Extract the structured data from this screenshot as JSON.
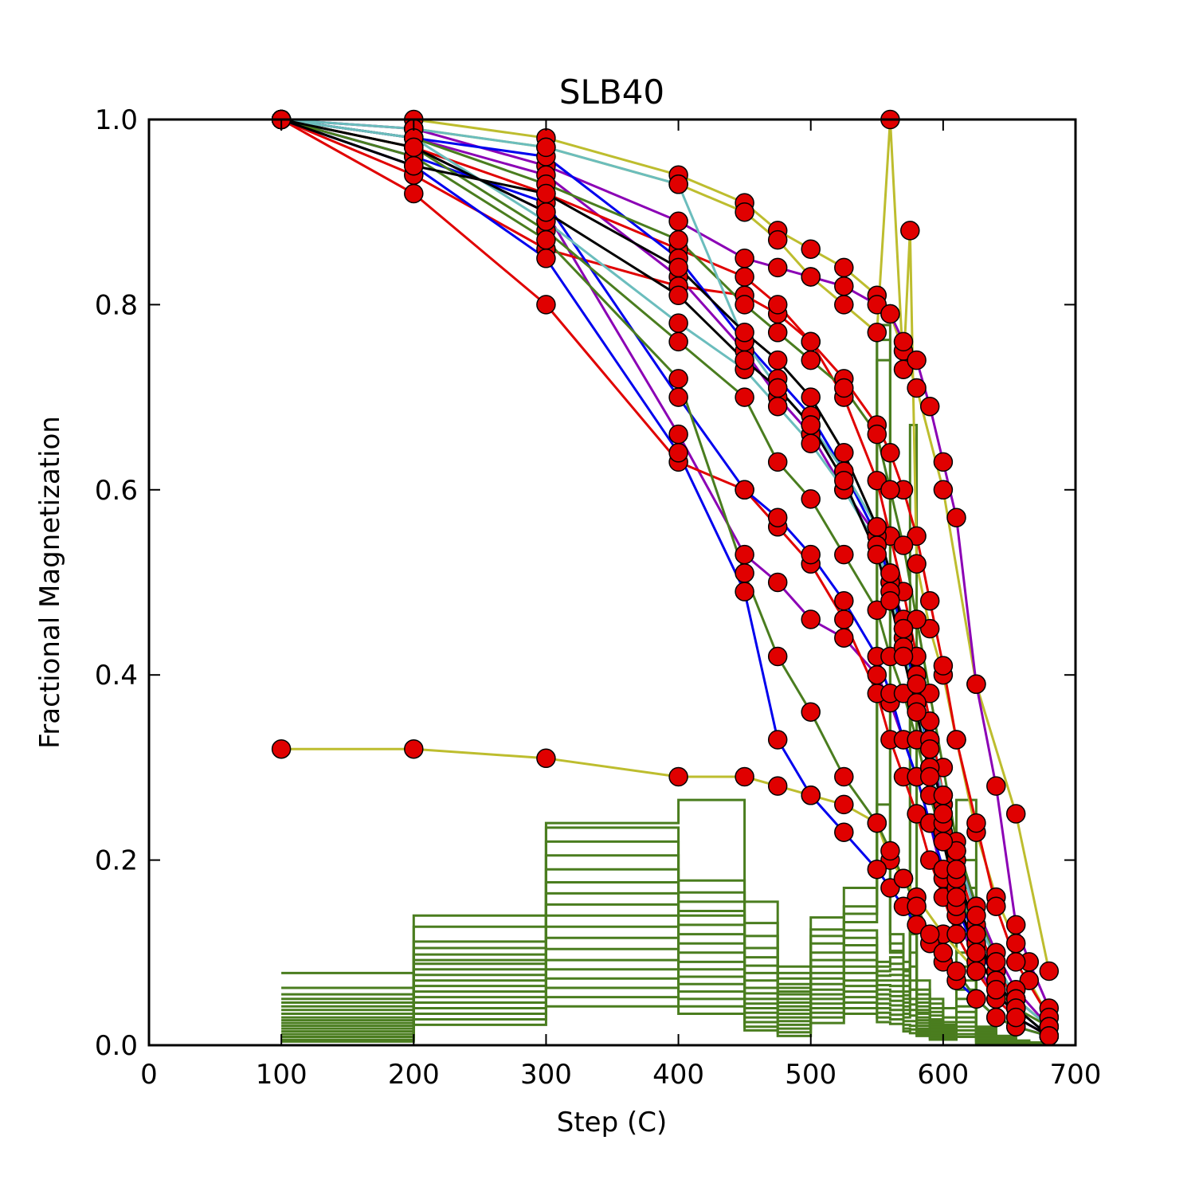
{
  "chart_data": {
    "type": "line",
    "title": "SLB40",
    "xlabel": "Step (C)",
    "ylabel": "Fractional Magnetization",
    "xlim": [
      0,
      700
    ],
    "ylim": [
      0.0,
      1.0
    ],
    "xticks": [
      "0",
      "100",
      "200",
      "300",
      "400",
      "500",
      "600",
      "700"
    ],
    "yticks": [
      "0.0",
      "0.2",
      "0.4",
      "0.6",
      "0.8",
      "1.0"
    ],
    "marker_color": "#e00000",
    "steps": [
      100,
      200,
      300,
      400,
      450,
      475,
      500,
      525,
      550,
      560,
      570,
      575,
      580,
      590,
      600,
      610,
      625,
      640,
      655,
      665,
      675,
      680
    ],
    "series": [
      {
        "color": "#bdbd2e",
        "x": [
          100,
          200,
          300,
          400,
          450,
          475,
          500,
          525,
          550,
          560,
          570,
          580,
          600,
          625,
          655,
          680
        ],
        "y": [
          1.0,
          1.0,
          0.98,
          0.94,
          0.91,
          0.88,
          0.86,
          0.84,
          0.81,
          0.79,
          0.75,
          0.71,
          0.6,
          0.39,
          0.25,
          0.08
        ]
      },
      {
        "color": "#bdbd2e",
        "x": [
          100,
          200,
          300,
          400,
          450,
          475,
          500,
          525,
          550,
          560,
          570,
          580,
          600,
          625,
          655,
          680
        ],
        "y": [
          0.32,
          0.32,
          0.31,
          0.29,
          0.29,
          0.28,
          0.27,
          0.26,
          0.24,
          0.2,
          0.18,
          0.16,
          0.12,
          0.08,
          0.04,
          0.01
        ]
      },
      {
        "color": "#bdbd2e",
        "x": [
          100,
          200,
          300,
          400,
          450,
          475,
          500,
          525,
          550,
          560,
          570,
          575,
          580,
          590,
          600,
          610,
          625,
          640,
          655,
          665,
          680
        ],
        "y": [
          1.0,
          0.99,
          0.97,
          0.93,
          0.9,
          0.87,
          0.83,
          0.8,
          0.77,
          1.0,
          0.73,
          0.88,
          0.52,
          0.45,
          0.4,
          0.33,
          0.23,
          0.16,
          0.11,
          0.07,
          0.03
        ]
      },
      {
        "color": "#8b00b5",
        "x": [
          100,
          200,
          300,
          400,
          450,
          475,
          500,
          525,
          550,
          560,
          570,
          580,
          590,
          600,
          610,
          625,
          640,
          655,
          665,
          680
        ],
        "y": [
          1.0,
          0.99,
          0.95,
          0.89,
          0.85,
          0.84,
          0.83,
          0.82,
          0.8,
          0.79,
          0.76,
          0.74,
          0.69,
          0.63,
          0.57,
          0.39,
          0.28,
          0.13,
          0.09,
          0.04
        ]
      },
      {
        "color": "#8b00b5",
        "x": [
          100,
          200,
          300,
          400,
          450,
          475,
          500,
          525,
          550,
          560,
          570,
          580,
          590,
          600,
          610,
          625,
          640,
          655,
          680
        ],
        "y": [
          1.0,
          0.98,
          0.94,
          0.83,
          0.75,
          0.7,
          0.66,
          0.6,
          0.55,
          0.5,
          0.46,
          0.4,
          0.33,
          0.26,
          0.21,
          0.15,
          0.1,
          0.06,
          0.02
        ]
      },
      {
        "color": "#8b00b5",
        "x": [
          100,
          200,
          300,
          400,
          450,
          475,
          500,
          525,
          550,
          560,
          570,
          580,
          590,
          600,
          610,
          625,
          640,
          655,
          680
        ],
        "y": [
          1.0,
          0.97,
          0.9,
          0.66,
          0.53,
          0.5,
          0.46,
          0.44,
          0.4,
          0.37,
          0.33,
          0.29,
          0.24,
          0.18,
          0.14,
          0.09,
          0.05,
          0.03,
          0.01
        ]
      },
      {
        "color": "#e00000",
        "x": [
          100,
          200,
          300,
          400,
          450,
          475,
          500,
          525,
          550,
          560,
          570,
          580,
          590,
          600,
          610,
          625,
          640,
          655,
          680
        ],
        "y": [
          1.0,
          0.92,
          0.8,
          0.63,
          0.6,
          0.56,
          0.52,
          0.46,
          0.38,
          0.33,
          0.29,
          0.25,
          0.2,
          0.16,
          0.12,
          0.08,
          0.05,
          0.03,
          0.01
        ]
      },
      {
        "color": "#e00000",
        "x": [
          100,
          200,
          300,
          400,
          450,
          475,
          500,
          525,
          550,
          560,
          570,
          580,
          590,
          600,
          610,
          625,
          640,
          655,
          680
        ],
        "y": [
          1.0,
          0.94,
          0.86,
          0.82,
          0.81,
          0.79,
          0.76,
          0.72,
          0.67,
          0.64,
          0.6,
          0.55,
          0.48,
          0.41,
          0.33,
          0.24,
          0.15,
          0.09,
          0.03
        ]
      },
      {
        "color": "#e00000",
        "x": [
          100,
          200,
          300,
          400,
          450,
          475,
          500,
          525,
          550,
          560,
          570,
          580,
          590,
          600,
          610,
          625,
          640,
          655,
          680
        ],
        "y": [
          1.0,
          0.97,
          0.92,
          0.86,
          0.83,
          0.8,
          0.76,
          0.7,
          0.61,
          0.55,
          0.49,
          0.42,
          0.35,
          0.27,
          0.2,
          0.13,
          0.08,
          0.05,
          0.02
        ]
      },
      {
        "color": "#0000ee",
        "x": [
          100,
          200,
          300,
          400,
          450,
          475,
          500,
          525,
          550,
          560,
          570,
          580,
          590,
          600,
          610,
          625,
          640,
          655,
          680
        ],
        "y": [
          1.0,
          0.95,
          0.85,
          0.64,
          0.49,
          0.33,
          0.27,
          0.23,
          0.19,
          0.17,
          0.15,
          0.13,
          0.11,
          0.09,
          0.07,
          0.05,
          0.03,
          0.02,
          0.01
        ]
      },
      {
        "color": "#0000ee",
        "x": [
          100,
          200,
          300,
          400,
          450,
          475,
          500,
          525,
          550,
          560,
          570,
          580,
          590,
          600,
          610,
          625,
          640,
          655,
          680
        ],
        "y": [
          1.0,
          0.96,
          0.91,
          0.7,
          0.6,
          0.57,
          0.53,
          0.48,
          0.42,
          0.38,
          0.33,
          0.29,
          0.24,
          0.19,
          0.15,
          0.1,
          0.06,
          0.03,
          0.01
        ]
      },
      {
        "color": "#0000ee",
        "x": [
          100,
          200,
          300,
          400,
          450,
          475,
          500,
          525,
          550,
          560,
          570,
          580,
          590,
          600,
          610,
          625,
          640,
          655,
          680
        ],
        "y": [
          1.0,
          0.98,
          0.96,
          0.85,
          0.76,
          0.72,
          0.68,
          0.62,
          0.55,
          0.5,
          0.44,
          0.38,
          0.3,
          0.23,
          0.17,
          0.11,
          0.07,
          0.04,
          0.01
        ]
      },
      {
        "color": "#4a7d1f",
        "x": [
          100,
          200,
          300,
          400,
          450,
          475,
          500,
          525,
          550,
          560,
          570,
          580,
          590,
          600,
          610,
          625,
          640,
          655,
          680
        ],
        "y": [
          1.0,
          0.97,
          0.88,
          0.76,
          0.7,
          0.63,
          0.59,
          0.53,
          0.47,
          0.42,
          0.38,
          0.33,
          0.27,
          0.22,
          0.17,
          0.12,
          0.07,
          0.04,
          0.02
        ]
      },
      {
        "color": "#4a7d1f",
        "x": [
          100,
          200,
          300,
          400,
          450,
          475,
          500,
          525,
          550,
          560,
          570,
          580,
          590,
          600,
          610,
          625,
          640,
          655,
          680
        ],
        "y": [
          1.0,
          0.98,
          0.93,
          0.87,
          0.8,
          0.77,
          0.74,
          0.71,
          0.66,
          0.6,
          0.54,
          0.46,
          0.38,
          0.3,
          0.22,
          0.15,
          0.09,
          0.05,
          0.02
        ]
      },
      {
        "color": "#4a7d1f",
        "x": [
          100,
          200,
          300,
          400,
          450,
          475,
          500,
          525,
          550,
          560,
          570,
          580,
          590,
          600,
          610,
          625,
          640,
          655,
          680
        ],
        "y": [
          1.0,
          0.96,
          0.87,
          0.72,
          0.51,
          0.42,
          0.36,
          0.29,
          0.24,
          0.21,
          0.18,
          0.15,
          0.12,
          0.1,
          0.08,
          0.05,
          0.03,
          0.02,
          0.01
        ]
      },
      {
        "color": "#6bbdbd",
        "x": [
          100,
          200,
          300,
          400,
          450,
          475,
          500,
          525,
          550,
          560,
          570,
          580,
          590,
          600,
          610,
          625,
          640,
          655,
          680
        ],
        "y": [
          1.0,
          0.99,
          0.97,
          0.93,
          0.76,
          0.71,
          0.67,
          0.62,
          0.56,
          0.51,
          0.45,
          0.4,
          0.33,
          0.27,
          0.21,
          0.14,
          0.09,
          0.05,
          0.02
        ]
      },
      {
        "color": "#6bbdbd",
        "x": [
          100,
          200,
          300,
          400,
          450,
          475,
          500,
          525,
          550,
          560,
          570,
          580,
          590,
          600,
          610,
          625,
          640,
          655,
          680
        ],
        "y": [
          1.0,
          0.98,
          0.89,
          0.78,
          0.73,
          0.69,
          0.65,
          0.6,
          0.54,
          0.49,
          0.43,
          0.37,
          0.3,
          0.24,
          0.18,
          0.12,
          0.07,
          0.04,
          0.01
        ]
      },
      {
        "color": "#000000",
        "x": [
          100,
          200,
          300,
          400,
          450,
          475,
          500,
          525,
          550,
          560,
          570,
          580,
          590,
          600,
          610,
          625,
          640,
          655,
          680
        ],
        "y": [
          1.0,
          0.95,
          0.92,
          0.84,
          0.77,
          0.74,
          0.7,
          0.64,
          0.56,
          0.51,
          0.45,
          0.39,
          0.32,
          0.25,
          0.19,
          0.12,
          0.07,
          0.04,
          0.01
        ]
      },
      {
        "color": "#000000",
        "x": [
          100,
          200,
          300,
          400,
          450,
          475,
          500,
          525,
          550,
          560,
          570,
          580,
          590,
          600,
          610,
          625,
          640,
          655,
          680
        ],
        "y": [
          1.0,
          0.97,
          0.9,
          0.81,
          0.74,
          0.71,
          0.67,
          0.61,
          0.53,
          0.48,
          0.42,
          0.36,
          0.29,
          0.22,
          0.16,
          0.1,
          0.06,
          0.03,
          0.01
        ]
      }
    ],
    "step_color": "#4a7d1f",
    "step_traces": [
      [
        0.078,
        0.14,
        0.24,
        0.265,
        0.155,
        0.085,
        0.138,
        0.17,
        0.26,
        0.1,
        0.08,
        0.06,
        0.035,
        0.02,
        0.015,
        0.265,
        0.01,
        0.005,
        0.003,
        0.002,
        0.001
      ],
      [
        0.062,
        0.128,
        0.235,
        0.178,
        0.132,
        0.078,
        0.125,
        0.15,
        0.762,
        0.12,
        0.09,
        0.67,
        0.07,
        0.05,
        0.04,
        0.2,
        0.02,
        0.01,
        0.005,
        0.003,
        0.001
      ],
      [
        0.055,
        0.112,
        0.22,
        0.165,
        0.118,
        0.072,
        0.118,
        0.142,
        0.778,
        0.11,
        0.082,
        0.37,
        0.06,
        0.045,
        0.03,
        0.17,
        0.018,
        0.01,
        0.005,
        0.003,
        0.001
      ],
      [
        0.05,
        0.105,
        0.205,
        0.155,
        0.105,
        0.066,
        0.11,
        0.133,
        0.74,
        0.102,
        0.075,
        0.16,
        0.055,
        0.04,
        0.025,
        0.14,
        0.016,
        0.008,
        0.004,
        0.002,
        0.001
      ],
      [
        0.046,
        0.098,
        0.19,
        0.145,
        0.095,
        0.062,
        0.1,
        0.124,
        0.09,
        0.095,
        0.07,
        0.14,
        0.05,
        0.036,
        0.022,
        0.12,
        0.014,
        0.007,
        0.004,
        0.002,
        0.001
      ],
      [
        0.042,
        0.092,
        0.176,
        0.14,
        0.086,
        0.058,
        0.092,
        0.116,
        0.085,
        0.088,
        0.064,
        0.12,
        0.046,
        0.032,
        0.02,
        0.1,
        0.012,
        0.006,
        0.003,
        0.002,
        0.001
      ],
      [
        0.038,
        0.088,
        0.164,
        0.13,
        0.078,
        0.055,
        0.085,
        0.108,
        0.08,
        0.082,
        0.058,
        0.1,
        0.042,
        0.028,
        0.018,
        0.085,
        0.011,
        0.006,
        0.003,
        0.002,
        0.001
      ],
      [
        0.034,
        0.082,
        0.152,
        0.12,
        0.07,
        0.05,
        0.078,
        0.1,
        0.075,
        0.076,
        0.054,
        0.085,
        0.038,
        0.026,
        0.016,
        0.07,
        0.01,
        0.005,
        0.003,
        0.001,
        0.001
      ],
      [
        0.03,
        0.076,
        0.14,
        0.11,
        0.062,
        0.046,
        0.072,
        0.092,
        0.07,
        0.07,
        0.05,
        0.07,
        0.034,
        0.024,
        0.015,
        0.06,
        0.009,
        0.005,
        0.002,
        0.001,
        0.001
      ],
      [
        0.027,
        0.07,
        0.128,
        0.1,
        0.056,
        0.042,
        0.066,
        0.085,
        0.065,
        0.064,
        0.046,
        0.06,
        0.03,
        0.022,
        0.014,
        0.05,
        0.008,
        0.004,
        0.002,
        0.001,
        0.001
      ],
      [
        0.024,
        0.064,
        0.116,
        0.09,
        0.05,
        0.038,
        0.06,
        0.078,
        0.06,
        0.058,
        0.042,
        0.05,
        0.027,
        0.02,
        0.013,
        0.042,
        0.007,
        0.004,
        0.002,
        0.001,
        0.0
      ],
      [
        0.021,
        0.058,
        0.104,
        0.082,
        0.045,
        0.034,
        0.055,
        0.07,
        0.055,
        0.053,
        0.038,
        0.044,
        0.024,
        0.018,
        0.012,
        0.036,
        0.006,
        0.003,
        0.002,
        0.001,
        0.0
      ],
      [
        0.018,
        0.052,
        0.092,
        0.074,
        0.04,
        0.03,
        0.05,
        0.064,
        0.05,
        0.048,
        0.034,
        0.038,
        0.021,
        0.016,
        0.011,
        0.03,
        0.005,
        0.003,
        0.001,
        0.001,
        0.0
      ],
      [
        0.015,
        0.046,
        0.082,
        0.066,
        0.035,
        0.026,
        0.045,
        0.058,
        0.045,
        0.043,
        0.03,
        0.032,
        0.018,
        0.014,
        0.01,
        0.025,
        0.004,
        0.002,
        0.001,
        0.001,
        0.0
      ],
      [
        0.012,
        0.04,
        0.072,
        0.058,
        0.03,
        0.022,
        0.04,
        0.052,
        0.04,
        0.038,
        0.026,
        0.026,
        0.016,
        0.012,
        0.009,
        0.02,
        0.003,
        0.002,
        0.001,
        0.0,
        0.0
      ],
      [
        0.009,
        0.034,
        0.062,
        0.05,
        0.025,
        0.018,
        0.035,
        0.046,
        0.035,
        0.033,
        0.022,
        0.021,
        0.014,
        0.01,
        0.008,
        0.016,
        0.003,
        0.002,
        0.001,
        0.0,
        0.0
      ],
      [
        0.006,
        0.028,
        0.052,
        0.042,
        0.02,
        0.014,
        0.03,
        0.04,
        0.03,
        0.028,
        0.018,
        0.017,
        0.012,
        0.008,
        0.007,
        0.012,
        0.002,
        0.001,
        0.001,
        0.0,
        0.0
      ],
      [
        0.004,
        0.022,
        0.042,
        0.034,
        0.016,
        0.01,
        0.024,
        0.034,
        0.025,
        0.023,
        0.015,
        0.013,
        0.01,
        0.006,
        0.006,
        0.009,
        0.002,
        0.001,
        0.0,
        0.0,
        0.0
      ]
    ]
  }
}
